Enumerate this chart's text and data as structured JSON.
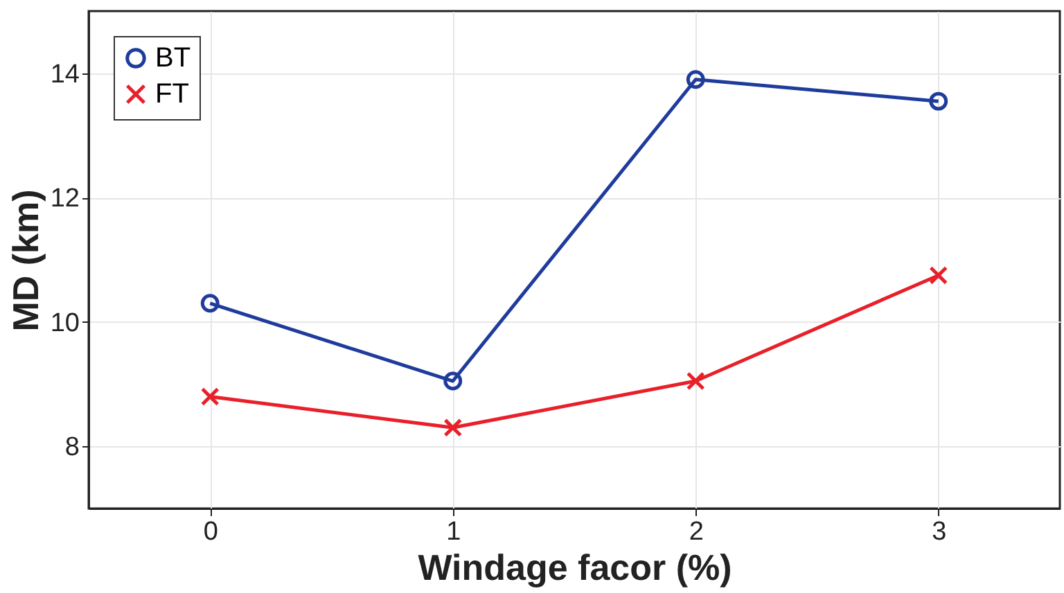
{
  "chart_data": {
    "type": "line",
    "xlabel": "Windage facor (%)",
    "ylabel": "MD (km)",
    "x": [
      0,
      1,
      2,
      3
    ],
    "series": [
      {
        "name": "BT",
        "color": "#1f3c9c",
        "marker": "circle",
        "values": [
          10.3,
          9.05,
          13.9,
          13.55
        ]
      },
      {
        "name": "FT",
        "color": "#e8202a",
        "marker": "cross",
        "values": [
          8.8,
          8.3,
          9.05,
          10.75
        ]
      }
    ],
    "xlim": [
      -0.5,
      3.5
    ],
    "xticks": [
      0,
      1,
      2,
      3
    ],
    "ylim": [
      7,
      15
    ],
    "yticks": [
      8,
      10,
      12,
      14
    ],
    "grid": true,
    "legend": "top left",
    "line_style": "solid"
  }
}
